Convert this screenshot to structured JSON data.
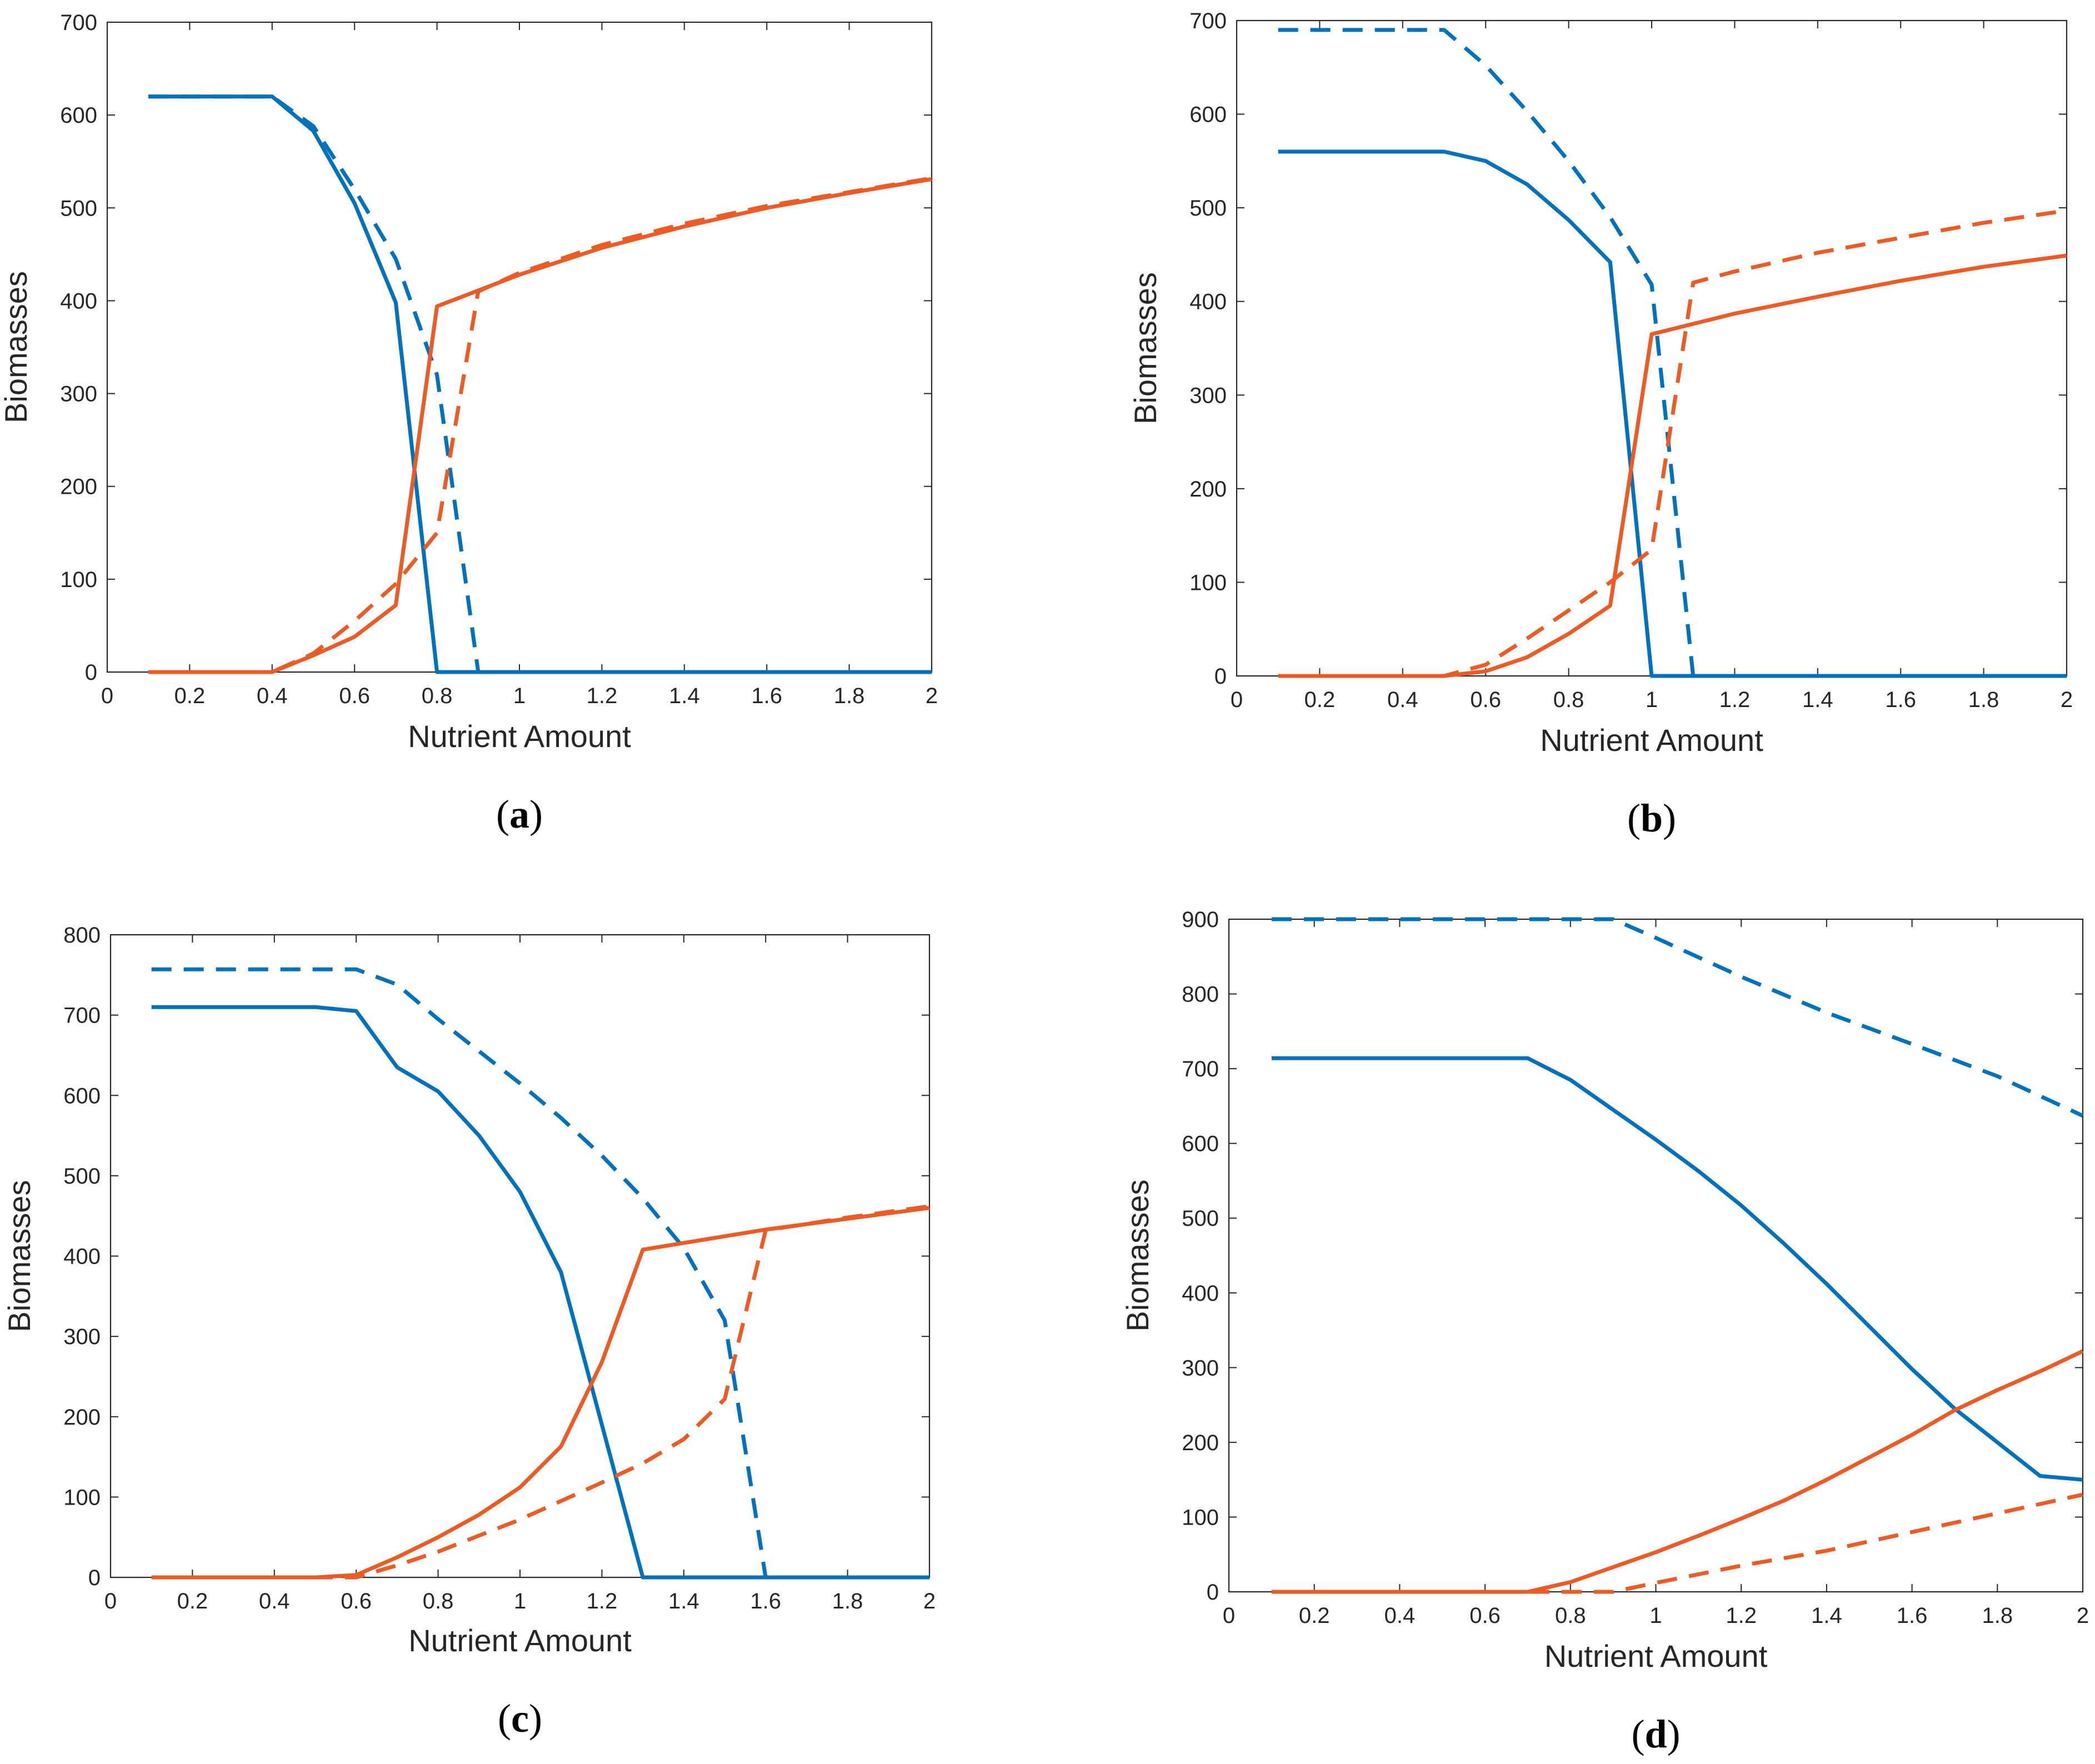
{
  "colors": {
    "blue": "#0072BD",
    "orange": "#EE5A24",
    "axis": "#262626",
    "background": "#ffffff"
  },
  "chart_data": [
    {
      "type": "line",
      "caption": "a",
      "title": "",
      "xlabel": "Nutrient Amount",
      "ylabel": "Biomasses",
      "xlim": [
        0,
        2
      ],
      "ylim": [
        0,
        700
      ],
      "xticks": [
        0,
        0.2,
        0.4,
        0.6,
        0.8,
        1,
        1.2,
        1.4,
        1.6,
        1.8,
        2
      ],
      "xtick_labels": [
        "0",
        "0.2",
        "0.4",
        "0.6",
        "0.8",
        "1",
        "1.2",
        "1.4",
        "1.6",
        "1.8",
        "2"
      ],
      "yticks": [
        0,
        100,
        200,
        300,
        400,
        500,
        600,
        700
      ],
      "ytick_labels": [
        "0",
        "100",
        "200",
        "300",
        "400",
        "500",
        "600",
        "700"
      ],
      "series": [
        {
          "name": "blue-solid",
          "color": "blue",
          "style": "solid",
          "x": [
            0.1,
            0.4,
            0.5,
            0.6,
            0.7,
            0.8,
            2
          ],
          "y": [
            620,
            620,
            583,
            505,
            398,
            0,
            0
          ]
        },
        {
          "name": "blue-dashed",
          "color": "blue",
          "style": "dashed",
          "x": [
            0.1,
            0.4,
            0.5,
            0.6,
            0.7,
            0.8,
            0.9,
            2
          ],
          "y": [
            620,
            620,
            588,
            520,
            445,
            320,
            0,
            0
          ]
        },
        {
          "name": "orange-solid",
          "color": "orange",
          "style": "solid",
          "x": [
            0.1,
            0.4,
            0.5,
            0.6,
            0.7,
            0.8,
            1.0,
            1.2,
            1.4,
            1.6,
            1.8,
            2.0
          ],
          "y": [
            0,
            0,
            18,
            38,
            72,
            394,
            428,
            457,
            480,
            500,
            516,
            531
          ]
        },
        {
          "name": "orange-dashed",
          "color": "orange",
          "style": "dashed",
          "x": [
            0.1,
            0.4,
            0.5,
            0.6,
            0.7,
            0.8,
            0.9,
            1.0,
            1.2,
            1.4,
            1.6,
            1.8,
            2.0
          ],
          "y": [
            0,
            0,
            20,
            55,
            95,
            150,
            410,
            430,
            460,
            483,
            502,
            517,
            532
          ]
        }
      ]
    },
    {
      "type": "line",
      "caption": "b",
      "title": "",
      "xlabel": "Nutrient Amount",
      "ylabel": "Biomasses",
      "xlim": [
        0,
        2
      ],
      "ylim": [
        0,
        700
      ],
      "xticks": [
        0,
        0.2,
        0.4,
        0.6,
        0.8,
        1,
        1.2,
        1.4,
        1.6,
        1.8,
        2
      ],
      "xtick_labels": [
        "0",
        "0.2",
        "0.4",
        "0.6",
        "0.8",
        "1",
        "1.2",
        "1.4",
        "1.6",
        "1.8",
        "2"
      ],
      "yticks": [
        0,
        100,
        200,
        300,
        400,
        500,
        600,
        700
      ],
      "ytick_labels": [
        "0",
        "100",
        "200",
        "300",
        "400",
        "500",
        "600",
        "700"
      ],
      "series": [
        {
          "name": "blue-solid",
          "color": "blue",
          "style": "solid",
          "x": [
            0.1,
            0.5,
            0.6,
            0.7,
            0.8,
            0.9,
            1.0,
            2.0
          ],
          "y": [
            560,
            560,
            550,
            525,
            487,
            442,
            0,
            0
          ]
        },
        {
          "name": "blue-dashed",
          "color": "blue",
          "style": "dashed",
          "x": [
            0.1,
            0.5,
            0.6,
            0.7,
            0.8,
            0.9,
            1.0,
            1.1,
            2.0
          ],
          "y": [
            690,
            690,
            652,
            603,
            550,
            490,
            418,
            0,
            0
          ]
        },
        {
          "name": "orange-solid",
          "color": "orange",
          "style": "solid",
          "x": [
            0.1,
            0.5,
            0.6,
            0.7,
            0.8,
            0.9,
            1.0,
            1.2,
            1.4,
            1.6,
            1.8,
            2.0
          ],
          "y": [
            0,
            0,
            5,
            20,
            45,
            75,
            365,
            387,
            405,
            422,
            437,
            449
          ]
        },
        {
          "name": "orange-dashed",
          "color": "orange",
          "style": "dashed",
          "x": [
            0.1,
            0.5,
            0.6,
            0.7,
            0.8,
            0.9,
            1.0,
            1.1,
            1.2,
            1.4,
            1.6,
            1.8,
            2.0
          ],
          "y": [
            0,
            0,
            12,
            40,
            70,
            100,
            135,
            420,
            432,
            452,
            468,
            484,
            497
          ]
        }
      ]
    },
    {
      "type": "line",
      "caption": "c",
      "title": "",
      "xlabel": "Nutrient Amount",
      "ylabel": "Biomasses",
      "xlim": [
        0,
        2
      ],
      "ylim": [
        0,
        800
      ],
      "xticks": [
        0,
        0.2,
        0.4,
        0.6,
        0.8,
        1,
        1.2,
        1.4,
        1.6,
        1.8,
        2
      ],
      "xtick_labels": [
        "0",
        "0.2",
        "0.4",
        "0.6",
        "0.8",
        "1",
        "1.2",
        "1.4",
        "1.6",
        "1.8",
        "2"
      ],
      "yticks": [
        0,
        100,
        200,
        300,
        400,
        500,
        600,
        700,
        800
      ],
      "ytick_labels": [
        "0",
        "100",
        "200",
        "300",
        "400",
        "500",
        "600",
        "700",
        "800"
      ],
      "series": [
        {
          "name": "blue-solid",
          "color": "blue",
          "style": "solid",
          "x": [
            0.1,
            0.5,
            0.6,
            0.7,
            0.8,
            0.9,
            1.0,
            1.1,
            1.2,
            1.3,
            2.0
          ],
          "y": [
            710,
            710,
            705,
            635,
            605,
            550,
            480,
            380,
            190,
            0,
            0
          ]
        },
        {
          "name": "blue-dashed",
          "color": "blue",
          "style": "dashed",
          "x": [
            0.1,
            0.6,
            0.7,
            0.8,
            0.9,
            1.0,
            1.1,
            1.2,
            1.3,
            1.4,
            1.5,
            1.6,
            2.0
          ],
          "y": [
            757,
            757,
            738,
            695,
            655,
            615,
            572,
            525,
            472,
            410,
            320,
            0,
            0
          ]
        },
        {
          "name": "orange-solid",
          "color": "orange",
          "style": "solid",
          "x": [
            0.1,
            0.5,
            0.6,
            0.7,
            0.8,
            0.9,
            1.0,
            1.1,
            1.2,
            1.3,
            1.6,
            2.0
          ],
          "y": [
            0,
            0,
            3,
            25,
            50,
            78,
            112,
            163,
            268,
            408,
            433,
            460
          ]
        },
        {
          "name": "orange-dashed",
          "color": "orange",
          "style": "dashed",
          "x": [
            0.1,
            0.6,
            0.7,
            0.8,
            0.9,
            1.0,
            1.1,
            1.2,
            1.3,
            1.4,
            1.5,
            1.6,
            1.8,
            2.0
          ],
          "y": [
            0,
            0,
            15,
            32,
            52,
            72,
            95,
            118,
            142,
            172,
            222,
            432,
            448,
            462
          ]
        }
      ]
    },
    {
      "type": "line",
      "caption": "d",
      "title": "",
      "xlabel": "Nutrient Amount",
      "ylabel": "Biomasses",
      "xlim": [
        0,
        2
      ],
      "ylim": [
        0,
        900
      ],
      "xticks": [
        0,
        0.2,
        0.4,
        0.6,
        0.8,
        1,
        1.2,
        1.4,
        1.6,
        1.8,
        2
      ],
      "xtick_labels": [
        "0",
        "0.2",
        "0.4",
        "0.6",
        "0.8",
        "1",
        "1.2",
        "1.4",
        "1.6",
        "1.8",
        "2"
      ],
      "yticks": [
        0,
        100,
        200,
        300,
        400,
        500,
        600,
        700,
        800,
        900
      ],
      "ytick_labels": [
        "0",
        "100",
        "200",
        "300",
        "400",
        "500",
        "600",
        "700",
        "800",
        "900"
      ],
      "series": [
        {
          "name": "blue-solid",
          "color": "blue",
          "style": "solid",
          "x": [
            0.1,
            0.7,
            0.8,
            0.9,
            1.0,
            1.1,
            1.2,
            1.3,
            1.4,
            1.5,
            1.6,
            1.7,
            1.8,
            1.9,
            2.0
          ],
          "y": [
            714,
            714,
            685,
            645,
            605,
            563,
            517,
            466,
            412,
            355,
            298,
            245,
            200,
            155,
            150
          ]
        },
        {
          "name": "blue-dashed",
          "color": "blue",
          "style": "dashed",
          "x": [
            0.1,
            0.9,
            1.0,
            1.2,
            1.4,
            1.6,
            1.8,
            2.0
          ],
          "y": [
            900,
            900,
            875,
            823,
            775,
            733,
            690,
            637
          ]
        },
        {
          "name": "orange-solid",
          "color": "orange",
          "style": "solid",
          "x": [
            0.1,
            0.7,
            0.8,
            0.9,
            1.0,
            1.1,
            1.2,
            1.3,
            1.4,
            1.5,
            1.6,
            1.7,
            1.8,
            1.9,
            2.0
          ],
          "y": [
            0,
            0,
            13,
            33,
            53,
            75,
            98,
            122,
            150,
            180,
            210,
            243,
            270,
            295,
            322
          ]
        },
        {
          "name": "orange-dashed",
          "color": "orange",
          "style": "dashed",
          "x": [
            0.1,
            0.9,
            1.0,
            1.2,
            1.4,
            1.6,
            1.8,
            2.0
          ],
          "y": [
            0,
            0,
            12,
            35,
            55,
            80,
            105,
            130
          ]
        }
      ]
    }
  ]
}
